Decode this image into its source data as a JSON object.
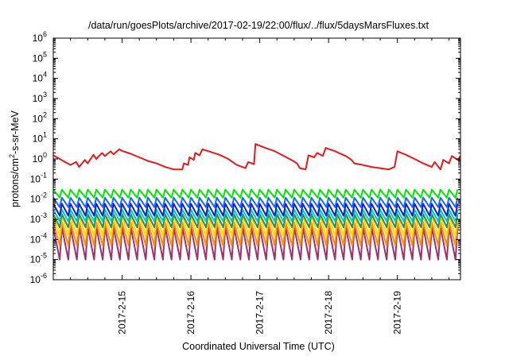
{
  "chart_data": {
    "type": "line",
    "title": "/data/run/goesPlots/archive/2017-02-19/22:00/flux/../flux/5daysMarsFluxes.txt",
    "xlabel": "Coordinated Universal Time (UTC)",
    "ylabel_parts": [
      "protons/cm",
      "2",
      "-s-sr-MeV"
    ],
    "y_scale": "log",
    "ylim": [
      1e-06,
      1000000.0
    ],
    "y_ticks": [
      {
        "base": "10",
        "exp": "-6",
        "value": -6
      },
      {
        "base": "10",
        "exp": "-5",
        "value": -5
      },
      {
        "base": "10",
        "exp": "-4",
        "value": -4
      },
      {
        "base": "10",
        "exp": "-3",
        "value": -3
      },
      {
        "base": "10",
        "exp": "-2",
        "value": -2
      },
      {
        "base": "10",
        "exp": "-1",
        "value": -1
      },
      {
        "base": "10",
        "exp": "0",
        "value": 0
      },
      {
        "base": "10",
        "exp": "1",
        "value": 1
      },
      {
        "base": "10",
        "exp": "2",
        "value": 2
      },
      {
        "base": "10",
        "exp": "3",
        "value": 3
      },
      {
        "base": "10",
        "exp": "4",
        "value": 4
      },
      {
        "base": "10",
        "exp": "5",
        "value": 5
      },
      {
        "base": "10",
        "exp": "6",
        "value": 6
      }
    ],
    "xlim": [
      "2017-02-14T00:00",
      "2017-02-19T22:00"
    ],
    "x_ticks": [
      {
        "label": "2017-2-15",
        "value": "2017-02-15T00:00"
      },
      {
        "label": "2017-2-16",
        "value": "2017-02-16T00:00"
      },
      {
        "label": "2017-2-17",
        "value": "2017-02-17T00:00"
      },
      {
        "label": "2017-2-18",
        "value": "2017-02-18T00:00"
      },
      {
        "label": "2017-2-19",
        "value": "2017-02-19T00:00"
      }
    ],
    "grid": false,
    "legend": "none",
    "series": [
      {
        "color": "#e41a1c",
        "x": [
          "2017-02-14T00:00",
          "2017-02-14T06:00",
          "2017-02-14T08:00",
          "2017-02-14T09:00",
          "2017-02-14T11:00",
          "2017-02-14T12:00",
          "2017-02-14T14:00",
          "2017-02-14T15:00",
          "2017-02-14T17:00",
          "2017-02-14T18:00",
          "2017-02-14T20:00",
          "2017-02-14T21:00",
          "2017-02-14T23:00",
          "2017-02-15T00:00",
          "2017-02-15T03:00",
          "2017-02-15T06:00",
          "2017-02-15T09:00",
          "2017-02-15T12:00",
          "2017-02-15T15:00",
          "2017-02-15T18:00",
          "2017-02-15T21:00",
          "2017-02-15T21:30",
          "2017-02-15T23:00",
          "2017-02-15T23:30",
          "2017-02-16T01:00",
          "2017-02-16T01:30",
          "2017-02-16T03:00",
          "2017-02-16T04:00",
          "2017-02-16T07:00",
          "2017-02-16T10:00",
          "2017-02-16T13:00",
          "2017-02-16T16:00",
          "2017-02-16T19:00",
          "2017-02-16T20:00",
          "2017-02-16T22:00",
          "2017-02-16T22:30",
          "2017-02-17T02:00",
          "2017-02-17T05:00",
          "2017-02-17T08:00",
          "2017-02-17T11:00",
          "2017-02-17T13:00",
          "2017-02-17T14:00",
          "2017-02-17T16:00",
          "2017-02-17T17:00",
          "2017-02-17T19:00",
          "2017-02-17T20:00",
          "2017-02-17T22:00",
          "2017-02-17T23:00",
          "2017-02-18T02:00",
          "2017-02-18T05:00",
          "2017-02-18T06:00",
          "2017-02-18T08:00",
          "2017-02-18T09:00",
          "2017-02-18T12:00",
          "2017-02-18T15:00",
          "2017-02-18T18:00",
          "2017-02-18T21:00",
          "2017-02-18T23:00",
          "2017-02-19T00:00",
          "2017-02-19T03:00",
          "2017-02-19T06:00",
          "2017-02-19T09:00",
          "2017-02-19T12:00",
          "2017-02-19T13:00",
          "2017-02-19T15:00",
          "2017-02-19T16:00",
          "2017-02-19T18:00",
          "2017-02-19T19:00",
          "2017-02-19T21:00",
          "2017-02-19T22:00"
        ],
        "y": [
          1.5,
          0.5,
          0.7,
          0.4,
          0.9,
          0.6,
          1.6,
          1.0,
          2.0,
          1.4,
          2.4,
          1.7,
          3.0,
          2.5,
          1.8,
          1.2,
          0.8,
          0.6,
          0.4,
          0.3,
          0.3,
          0.6,
          0.5,
          1.2,
          0.9,
          2.0,
          1.5,
          3.0,
          2.2,
          1.6,
          1.0,
          0.5,
          0.35,
          0.7,
          0.55,
          5.5,
          3.5,
          2.5,
          1.5,
          0.9,
          0.6,
          0.35,
          0.3,
          1.5,
          1.2,
          2.0,
          1.4,
          3.5,
          2.5,
          1.6,
          1.4,
          0.9,
          0.6,
          0.5,
          0.4,
          0.35,
          0.3,
          0.4,
          2.4,
          1.6,
          1.0,
          0.6,
          0.4,
          0.7,
          0.3,
          0.9,
          0.6,
          1.4,
          0.9,
          1.4
        ]
      },
      {
        "color": "#00e600",
        "x0": "2017-02-14T00:00",
        "period_hours": 3,
        "peaks": 48,
        "peak": 0.03,
        "trough": 0.012
      },
      {
        "color": "#1a66ff",
        "x0": "2017-02-14T00:00",
        "period_hours": 3,
        "peaks": 48,
        "peak": 0.012,
        "trough": 0.004
      },
      {
        "color": "#1020cc",
        "x0": "2017-02-14T00:00",
        "period_hours": 3,
        "peaks": 48,
        "peak": 0.006,
        "trough": 0.0015
      },
      {
        "color": "#00c8c8",
        "x0": "2017-02-14T00:00",
        "period_hours": 3,
        "peaks": 48,
        "peak": 0.003,
        "trough": 0.0008
      },
      {
        "color": "#2e8b57",
        "x0": "2017-02-14T00:00",
        "period_hours": 3,
        "peaks": 48,
        "peak": 0.0018,
        "trough": 0.0004
      },
      {
        "color": "#ffd700",
        "x0": "2017-02-14T00:00",
        "period_hours": 3,
        "peaks": 48,
        "peak": 0.0015,
        "trough": 0.00015
      },
      {
        "color": "#ff8c00",
        "x0": "2017-02-14T00:00",
        "period_hours": 3,
        "peaks": 48,
        "peak": 0.0007,
        "trough": 5e-05
      },
      {
        "color": "#a0306e",
        "x0": "2017-02-14T00:00",
        "period_hours": 3,
        "peaks": 48,
        "peak": 0.0004,
        "trough": 1e-05
      }
    ]
  }
}
